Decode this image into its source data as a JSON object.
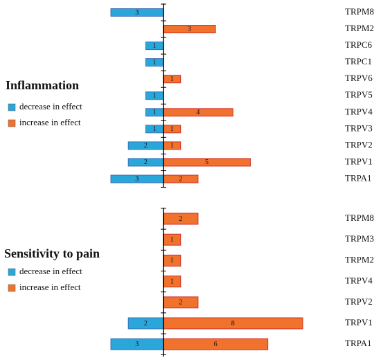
{
  "chart_data": [
    {
      "type": "bar",
      "title": "Inflammation",
      "categories": [
        "TRPM8",
        "TRPM2",
        "TRPC6",
        "TRPC1",
        "TRPV6",
        "TRPV5",
        "TRPV4",
        "TRPV3",
        "TRPV2",
        "TRPV1",
        "TRPA1"
      ],
      "series": [
        {
          "name": "decrease in effect",
          "color": "#2aa7da",
          "side": "left",
          "values": [
            3,
            null,
            1,
            1,
            null,
            1,
            1,
            1,
            2,
            2,
            3
          ]
        },
        {
          "name": "increase in effect",
          "color": "#f0722c",
          "side": "right",
          "values": [
            null,
            3,
            null,
            null,
            1,
            null,
            4,
            1,
            1,
            5,
            2
          ]
        }
      ],
      "xlim": [
        -3,
        8
      ],
      "legend": "left"
    },
    {
      "type": "bar",
      "title": "Sensitivity to pain",
      "categories": [
        "TRPM8",
        "TRPM3",
        "TRPM2",
        "TRPV4",
        "TRPV2",
        "TRPV1",
        "TRPA1"
      ],
      "series": [
        {
          "name": "decrease in effect",
          "color": "#2aa7da",
          "side": "left",
          "values": [
            null,
            null,
            null,
            null,
            null,
            2,
            3
          ]
        },
        {
          "name": "increase in effect",
          "color": "#f0722c",
          "side": "right",
          "values": [
            2,
            1,
            1,
            1,
            2,
            8,
            6
          ]
        }
      ],
      "xlim": [
        -3,
        8
      ],
      "legend": "left"
    }
  ]
}
